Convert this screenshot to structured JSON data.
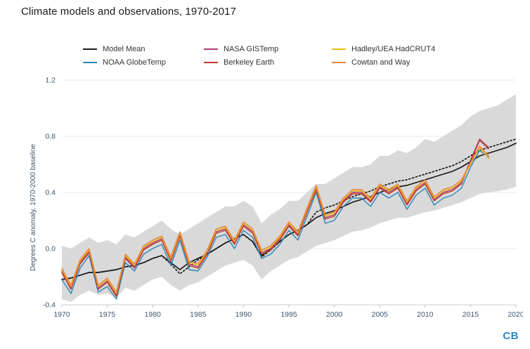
{
  "page": {
    "title": "Climate models and observations, 1970-2017"
  },
  "footer": {
    "logo_text": "CB"
  },
  "chart_data": {
    "type": "line",
    "title": "Climate models and observations, 1970-2017",
    "xlabel": "",
    "ylabel": "Degrees C anomaly, 1970-2000 baseline",
    "xlim": [
      1970,
      2020
    ],
    "ylim": [
      -0.4,
      1.2
    ],
    "xticks": [
      1970,
      1975,
      1980,
      1985,
      1990,
      1995,
      2000,
      2005,
      2010,
      2015,
      2020
    ],
    "yticks": [
      -0.4,
      0.0,
      0.4,
      0.8,
      1.2
    ],
    "ytick_labels": [
      "-0.4",
      "0.0",
      "0.4",
      "0.8",
      "1.2"
    ],
    "grid": "horizontal",
    "legend_position": "top",
    "band": {
      "name": "Model spread envelope",
      "color": "#d9d9d9",
      "start_year": 1970,
      "lower": [
        -0.36,
        -0.38,
        -0.33,
        -0.3,
        -0.33,
        -0.32,
        -0.35,
        -0.28,
        -0.3,
        -0.26,
        -0.22,
        -0.2,
        -0.26,
        -0.3,
        -0.26,
        -0.24,
        -0.2,
        -0.16,
        -0.12,
        -0.1,
        -0.08,
        -0.12,
        -0.22,
        -0.16,
        -0.12,
        -0.08,
        -0.06,
        -0.02,
        0.02,
        0.04,
        0.06,
        0.09,
        0.12,
        0.13,
        0.15,
        0.18,
        0.2,
        0.22,
        0.22,
        0.24,
        0.26,
        0.27,
        0.29,
        0.31,
        0.33,
        0.36,
        0.39,
        0.4,
        0.41,
        0.42,
        0.44
      ],
      "upper": [
        0.02,
        0.0,
        0.04,
        0.08,
        0.04,
        0.06,
        0.03,
        0.1,
        0.08,
        0.12,
        0.16,
        0.2,
        0.14,
        0.1,
        0.14,
        0.18,
        0.22,
        0.26,
        0.3,
        0.3,
        0.34,
        0.3,
        0.18,
        0.24,
        0.28,
        0.34,
        0.34,
        0.4,
        0.46,
        0.46,
        0.5,
        0.54,
        0.58,
        0.58,
        0.6,
        0.66,
        0.66,
        0.7,
        0.68,
        0.72,
        0.78,
        0.76,
        0.8,
        0.84,
        0.88,
        0.94,
        0.98,
        1.0,
        1.02,
        1.06,
        1.1
      ]
    },
    "series": [
      {
        "name": "Model Mean",
        "color": "#1a1a1a",
        "style": "solid",
        "legend": true,
        "start_year": 1970,
        "values": [
          -0.22,
          -0.21,
          -0.19,
          -0.17,
          -0.17,
          -0.16,
          -0.15,
          -0.13,
          -0.12,
          -0.1,
          -0.07,
          -0.05,
          -0.1,
          -0.15,
          -0.1,
          -0.07,
          -0.04,
          0.0,
          0.04,
          0.07,
          0.1,
          0.05,
          -0.05,
          0.0,
          0.05,
          0.1,
          0.13,
          0.17,
          0.22,
          0.25,
          0.27,
          0.3,
          0.33,
          0.35,
          0.37,
          0.4,
          0.42,
          0.44,
          0.45,
          0.47,
          0.49,
          0.51,
          0.53,
          0.55,
          0.58,
          0.62,
          0.66,
          0.68,
          0.7,
          0.72,
          0.75
        ]
      },
      {
        "name": "Model Mean (dotted)",
        "color": "#1a1a1a",
        "style": "dotted",
        "legend": false,
        "start_year": 1970,
        "values": [
          -0.22,
          -0.21,
          -0.19,
          -0.17,
          -0.17,
          -0.16,
          -0.15,
          -0.13,
          -0.12,
          -0.1,
          -0.07,
          -0.05,
          -0.11,
          -0.18,
          -0.13,
          -0.08,
          -0.04,
          0.0,
          0.04,
          0.07,
          0.1,
          0.05,
          -0.06,
          -0.01,
          0.05,
          0.1,
          0.13,
          0.17,
          0.26,
          0.29,
          0.31,
          0.34,
          0.37,
          0.39,
          0.41,
          0.44,
          0.46,
          0.48,
          0.49,
          0.51,
          0.53,
          0.55,
          0.57,
          0.59,
          0.62,
          0.66,
          0.7,
          0.72,
          0.74,
          0.76,
          0.78
        ]
      },
      {
        "name": "NOAA GlobeTemp",
        "color": "#2a87b8",
        "style": "solid",
        "legend": true,
        "start_year": 1970,
        "values": [
          -0.22,
          -0.32,
          -0.14,
          -0.05,
          -0.31,
          -0.27,
          -0.36,
          -0.1,
          -0.16,
          -0.04,
          0.0,
          0.03,
          -0.12,
          0.06,
          -0.15,
          -0.16,
          -0.06,
          0.08,
          0.1,
          0.0,
          0.13,
          0.08,
          -0.07,
          -0.04,
          0.03,
          0.13,
          0.06,
          0.23,
          0.4,
          0.18,
          0.2,
          0.3,
          0.36,
          0.36,
          0.3,
          0.4,
          0.36,
          0.4,
          0.28,
          0.38,
          0.43,
          0.31,
          0.36,
          0.38,
          0.43,
          0.58,
          0.7,
          0.65
        ]
      },
      {
        "name": "NASA GISTemp",
        "color": "#ad3a74",
        "style": "solid",
        "legend": true,
        "start_year": 1970,
        "values": [
          -0.16,
          -0.28,
          -0.1,
          -0.02,
          -0.28,
          -0.23,
          -0.33,
          -0.06,
          -0.13,
          0.0,
          0.04,
          0.07,
          -0.08,
          0.1,
          -0.11,
          -0.13,
          -0.03,
          0.12,
          0.14,
          0.04,
          0.17,
          0.12,
          -0.03,
          0.0,
          0.07,
          0.17,
          0.1,
          0.27,
          0.43,
          0.22,
          0.24,
          0.34,
          0.4,
          0.4,
          0.34,
          0.44,
          0.4,
          0.44,
          0.32,
          0.42,
          0.47,
          0.35,
          0.4,
          0.42,
          0.47,
          0.63,
          0.78,
          0.72
        ]
      },
      {
        "name": "Berkeley Earth",
        "color": "#c23a2b",
        "style": "solid",
        "legend": true,
        "start_year": 1970,
        "values": [
          -0.17,
          -0.29,
          -0.11,
          -0.03,
          -0.29,
          -0.24,
          -0.34,
          -0.07,
          -0.14,
          -0.01,
          0.03,
          0.06,
          -0.09,
          0.09,
          -0.12,
          -0.14,
          -0.04,
          0.11,
          0.13,
          0.03,
          0.16,
          0.11,
          -0.04,
          -0.01,
          0.06,
          0.16,
          0.09,
          0.26,
          0.42,
          0.21,
          0.23,
          0.33,
          0.39,
          0.39,
          0.33,
          0.43,
          0.39,
          0.43,
          0.31,
          0.41,
          0.46,
          0.34,
          0.39,
          0.41,
          0.46,
          0.62,
          0.77,
          0.71
        ]
      },
      {
        "name": "Hadley/UEA HadCRUT4",
        "color": "#e8c019",
        "style": "solid",
        "legend": true,
        "start_year": 1970,
        "values": [
          -0.15,
          -0.27,
          -0.09,
          -0.01,
          -0.27,
          -0.22,
          -0.32,
          -0.05,
          -0.12,
          0.01,
          0.05,
          0.08,
          -0.07,
          0.11,
          -0.1,
          -0.12,
          -0.02,
          0.13,
          0.15,
          0.05,
          0.18,
          0.13,
          -0.02,
          0.01,
          0.08,
          0.18,
          0.11,
          0.28,
          0.44,
          0.23,
          0.25,
          0.35,
          0.41,
          0.41,
          0.35,
          0.45,
          0.41,
          0.45,
          0.33,
          0.43,
          0.48,
          0.36,
          0.41,
          0.43,
          0.48,
          0.6,
          0.72,
          0.64
        ]
      },
      {
        "name": "Cowtan and Way",
        "color": "#e8823c",
        "style": "solid",
        "legend": true,
        "start_year": 1970,
        "values": [
          -0.14,
          -0.26,
          -0.08,
          0.0,
          -0.26,
          -0.21,
          -0.31,
          -0.04,
          -0.11,
          0.02,
          0.06,
          0.09,
          -0.06,
          0.12,
          -0.09,
          -0.11,
          -0.01,
          0.14,
          0.16,
          0.06,
          0.19,
          0.14,
          -0.01,
          0.02,
          0.09,
          0.19,
          0.12,
          0.29,
          0.45,
          0.24,
          0.26,
          0.36,
          0.42,
          0.42,
          0.36,
          0.46,
          0.42,
          0.46,
          0.34,
          0.44,
          0.49,
          0.37,
          0.42,
          0.44,
          0.49,
          0.61,
          0.73,
          0.66
        ]
      }
    ]
  }
}
